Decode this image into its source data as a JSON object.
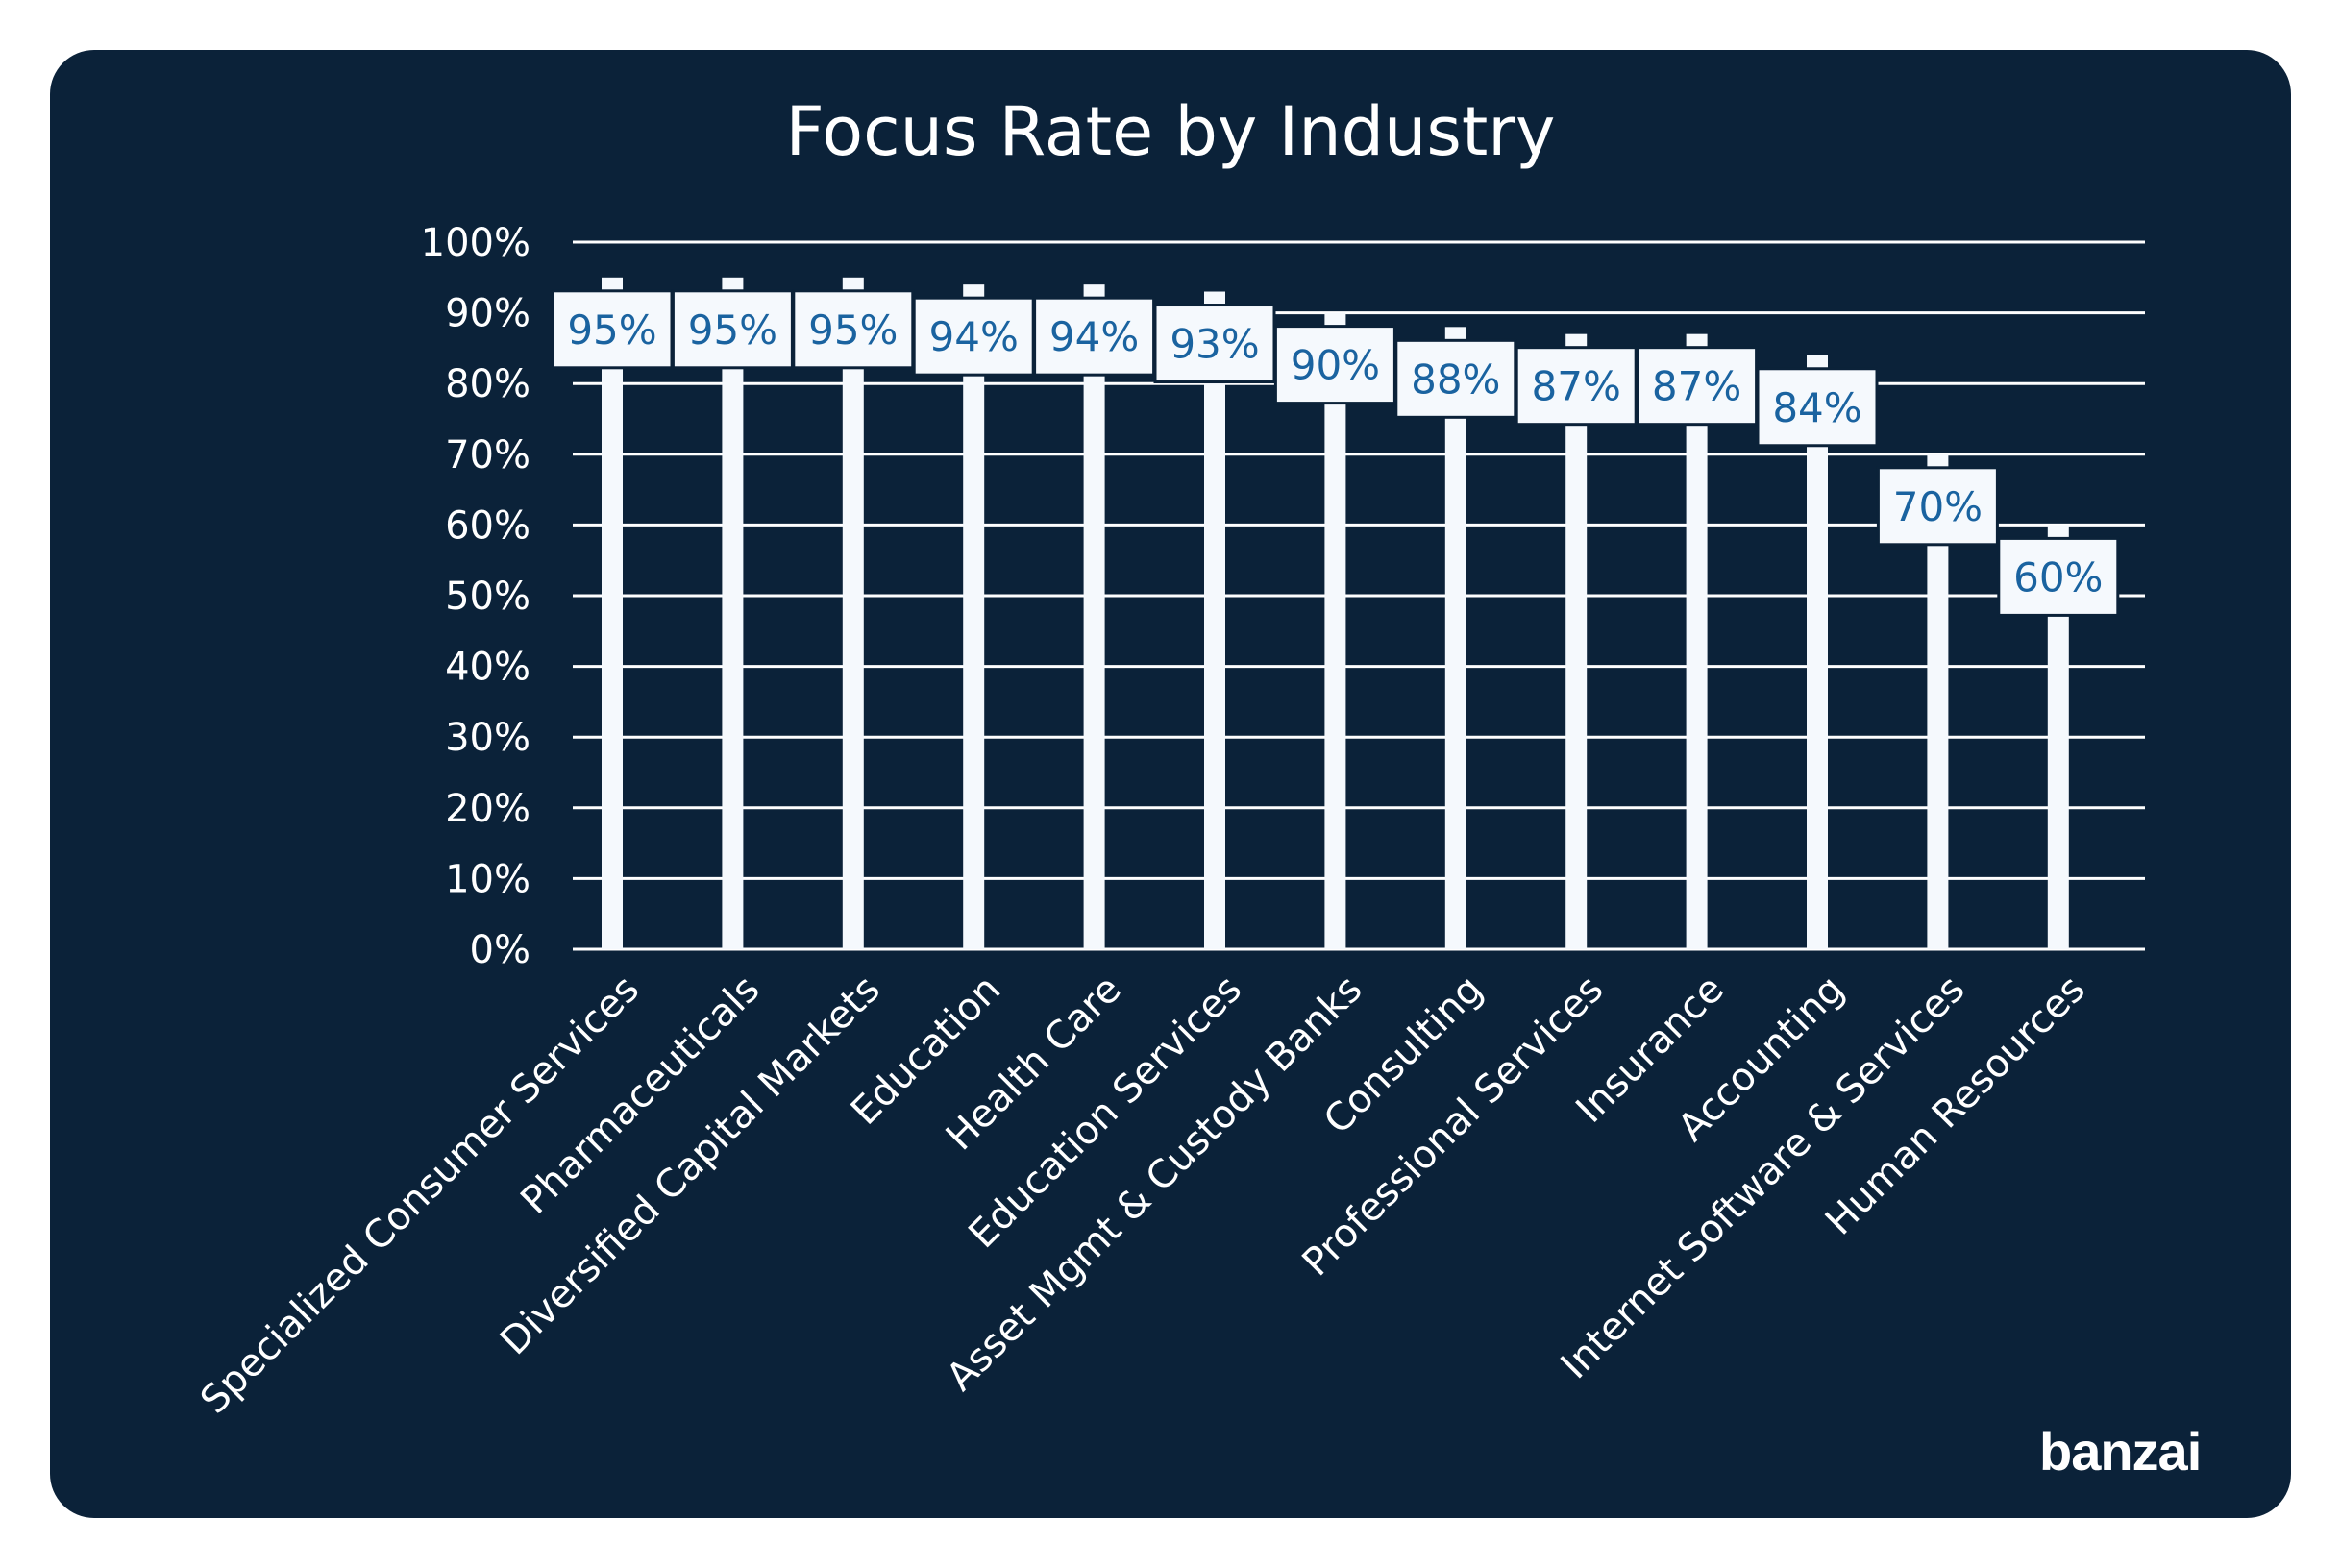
{
  "chart_data": {
    "type": "bar",
    "title": "Focus Rate by Industry",
    "categories": [
      "Specialized Consumer Services",
      "Pharmaceuticals",
      "Diversified Capital Markets",
      "Education",
      "Health Care",
      "Education Services",
      "Asset Mgmt & Custody Banks",
      "Consulting",
      "Professional Services",
      "Insurance",
      "Accounting",
      "Internet Software & Services",
      "Human Resources"
    ],
    "values": [
      95,
      95,
      95,
      94,
      94,
      93,
      90,
      88,
      87,
      87,
      84,
      70,
      60
    ],
    "data_labels": [
      "95%",
      "95%",
      "95%",
      "94%",
      "94%",
      "93%",
      "90%",
      "88%",
      "87%",
      "87%",
      "84%",
      "70%",
      "60%"
    ],
    "yticks": [
      "0%",
      "10%",
      "20%",
      "30%",
      "40%",
      "50%",
      "60%",
      "70%",
      "80%",
      "90%",
      "100%"
    ],
    "ylim": [
      0,
      100
    ],
    "grid": true,
    "xlabel": "",
    "ylabel": "",
    "colors": {
      "background": "#0b2239",
      "bar": "#f5f9fd",
      "label_text": "#1a63a0",
      "grid": "#ffffff"
    }
  },
  "brand": {
    "logo_text": "banzai"
  }
}
